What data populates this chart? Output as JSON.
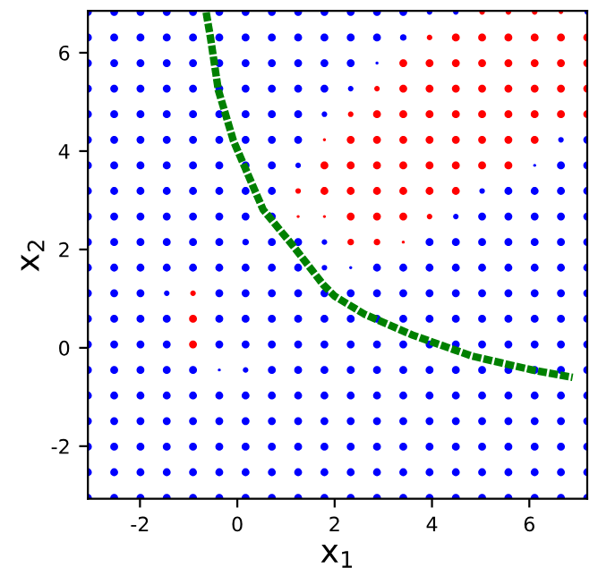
{
  "chart_data": {
    "type": "bubble",
    "xlabel": "x$_{1}$",
    "ylabel": "x$_{2}$",
    "xlim": [
      -3.07,
      7.19
    ],
    "ylim": [
      -3.07,
      6.85
    ],
    "xticks": [
      -2,
      0,
      2,
      4,
      6
    ],
    "yticks": [
      -2,
      0,
      2,
      4,
      6
    ],
    "grid": false,
    "legend": false,
    "series": [
      {
        "color": "#0000ff",
        "marker": "circle",
        "x": [
          -3.07,
          -2.53,
          -1.99,
          -1.45,
          -0.91,
          -0.37,
          0.17,
          0.71,
          1.25,
          1.79,
          2.33,
          2.87,
          3.41,
          3.95,
          4.49,
          7.19,
          -3.07,
          -2.53,
          -1.99,
          -1.45,
          -0.91,
          -0.37,
          0.17,
          0.71,
          1.25,
          1.79,
          2.33,
          2.87,
          3.41,
          -3.07,
          -2.53,
          -1.99,
          -1.45,
          -0.91,
          -0.37,
          0.17,
          0.71,
          1.25,
          1.79,
          2.33,
          2.87,
          -3.07,
          -2.53,
          -1.99,
          -1.45,
          -0.91,
          -0.37,
          0.17,
          0.71,
          1.25,
          1.79,
          2.33,
          -3.07,
          -2.53,
          -1.99,
          -1.45,
          -0.91,
          -0.37,
          0.17,
          0.71,
          1.25,
          1.79,
          -3.07,
          -2.53,
          -1.99,
          -1.45,
          -0.91,
          -0.37,
          0.17,
          0.71,
          1.25,
          6.65,
          7.19,
          -3.07,
          -2.53,
          -1.99,
          -1.45,
          -0.91,
          -0.37,
          0.17,
          0.71,
          1.25,
          6.11,
          6.65,
          7.19,
          -3.07,
          -2.53,
          -1.99,
          -1.45,
          -0.91,
          -0.37,
          0.17,
          0.71,
          5.03,
          5.57,
          6.11,
          6.65,
          7.19,
          -3.07,
          -2.53,
          -1.99,
          -1.45,
          -0.91,
          -0.37,
          0.17,
          0.71,
          4.49,
          5.03,
          5.57,
          6.11,
          6.65,
          7.19,
          -3.07,
          -2.53,
          -1.99,
          -1.45,
          -0.91,
          -0.37,
          0.17,
          0.71,
          1.25,
          1.79,
          3.95,
          4.49,
          5.03,
          5.57,
          6.11,
          6.65,
          7.19,
          -3.07,
          -2.53,
          -1.99,
          -1.45,
          -0.91,
          -0.37,
          0.17,
          0.71,
          1.25,
          1.79,
          2.33,
          2.87,
          3.41,
          3.95,
          4.49,
          5.03,
          5.57,
          6.11,
          6.65,
          7.19,
          -3.07,
          -2.53,
          -1.99,
          -1.45,
          -0.37,
          0.17,
          0.71,
          1.25,
          1.79,
          2.33,
          2.87,
          3.41,
          3.95,
          4.49,
          5.03,
          5.57,
          6.11,
          6.65,
          7.19,
          -3.07,
          -2.53,
          -1.99,
          -1.45,
          -0.37,
          0.17,
          0.71,
          1.25,
          1.79,
          2.33,
          2.87,
          3.41,
          3.95,
          4.49,
          5.03,
          5.57,
          6.11,
          6.65,
          7.19,
          -3.07,
          -2.53,
          -1.99,
          -1.45,
          -0.37,
          0.17,
          0.71,
          1.25,
          1.79,
          2.33,
          2.87,
          3.41,
          3.95,
          4.49,
          5.03,
          5.57,
          6.11,
          6.65,
          7.19,
          -3.07,
          -2.53,
          -1.99,
          -1.45,
          -0.91,
          -0.37,
          0.17,
          0.71,
          1.25,
          1.79,
          2.33,
          2.87,
          3.41,
          3.95,
          4.49,
          5.03,
          5.57,
          6.11,
          6.65,
          7.19,
          -3.07,
          -2.53,
          -1.99,
          -1.45,
          -0.91,
          -0.37,
          0.17,
          0.71,
          1.25,
          1.79,
          2.33,
          2.87,
          3.41,
          3.95,
          4.49,
          5.03,
          5.57,
          6.11,
          6.65,
          7.19,
          -3.07,
          -2.53,
          -1.99,
          -1.45,
          -0.91,
          -0.37,
          0.17,
          0.71,
          1.25,
          1.79,
          2.33,
          2.87,
          3.41,
          3.95,
          4.49,
          5.03,
          5.57,
          6.11,
          6.65,
          7.19,
          -3.07,
          -2.53,
          -1.99,
          -1.45,
          -0.91,
          -0.37,
          0.17,
          0.71,
          1.25,
          1.79,
          2.33,
          2.87,
          3.41,
          3.95,
          4.49,
          5.03,
          5.57,
          6.11,
          6.65,
          7.19,
          -3.07,
          -2.53,
          -1.99,
          -1.45,
          -0.91,
          -0.37,
          0.17,
          0.71,
          1.25,
          1.79,
          2.33,
          2.87,
          3.41,
          3.95,
          4.49,
          5.03,
          5.57,
          6.11,
          6.65,
          7.19,
          -3.07,
          -2.53,
          -1.99,
          -1.45,
          -0.91,
          -0.37,
          0.17,
          0.71,
          1.25,
          1.79,
          2.33,
          2.87,
          3.41,
          3.95,
          4.49,
          5.03,
          5.57,
          6.11,
          6.65,
          7.19
        ],
        "values": [
          6.83,
          6.83,
          6.83,
          6.83,
          6.83,
          6.83,
          6.83,
          6.83,
          6.83,
          6.83,
          6.83,
          6.83,
          6.83,
          6.83,
          6.83,
          6.83,
          6.31,
          6.31,
          6.31,
          6.31,
          6.31,
          6.31,
          6.31,
          6.31,
          6.31,
          6.31,
          6.31,
          6.31,
          6.31,
          5.79,
          5.79,
          5.79,
          5.79,
          5.79,
          5.79,
          5.79,
          5.79,
          5.79,
          5.79,
          5.79,
          5.79,
          5.27,
          5.27,
          5.27,
          5.27,
          5.27,
          5.27,
          5.27,
          5.27,
          5.27,
          5.27,
          5.27,
          4.75,
          4.75,
          4.75,
          4.75,
          4.75,
          4.75,
          4.75,
          4.75,
          4.75,
          4.75,
          4.23,
          4.23,
          4.23,
          4.23,
          4.23,
          4.23,
          4.23,
          4.23,
          4.23,
          4.23,
          4.23,
          3.71,
          3.71,
          3.71,
          3.71,
          3.71,
          3.71,
          3.71,
          3.71,
          3.71,
          3.71,
          3.71,
          3.71,
          3.19,
          3.19,
          3.19,
          3.19,
          3.19,
          3.19,
          3.19,
          3.19,
          3.19,
          3.19,
          3.19,
          3.19,
          3.19,
          2.67,
          2.67,
          2.67,
          2.67,
          2.67,
          2.67,
          2.67,
          2.67,
          2.67,
          2.67,
          2.67,
          2.67,
          2.67,
          2.67,
          2.15,
          2.15,
          2.15,
          2.15,
          2.15,
          2.15,
          2.15,
          2.15,
          2.15,
          2.15,
          2.15,
          2.15,
          2.15,
          2.15,
          2.15,
          2.15,
          2.15,
          1.63,
          1.63,
          1.63,
          1.63,
          1.63,
          1.63,
          1.63,
          1.63,
          1.63,
          1.63,
          1.63,
          1.63,
          1.63,
          1.63,
          1.63,
          1.63,
          1.63,
          1.63,
          1.63,
          1.63,
          1.11,
          1.11,
          1.11,
          1.11,
          1.11,
          1.11,
          1.11,
          1.11,
          1.11,
          1.11,
          1.11,
          1.11,
          1.11,
          1.11,
          1.11,
          1.11,
          1.11,
          1.11,
          1.11,
          0.59,
          0.59,
          0.59,
          0.59,
          0.59,
          0.59,
          0.59,
          0.59,
          0.59,
          0.59,
          0.59,
          0.59,
          0.59,
          0.59,
          0.59,
          0.59,
          0.59,
          0.59,
          0.59,
          0.07,
          0.07,
          0.07,
          0.07,
          0.07,
          0.07,
          0.07,
          0.07,
          0.07,
          0.07,
          0.07,
          0.07,
          0.07,
          0.07,
          0.07,
          0.07,
          0.07,
          0.07,
          0.07,
          -0.45,
          -0.45,
          -0.45,
          -0.45,
          -0.45,
          -0.45,
          -0.45,
          -0.45,
          -0.45,
          -0.45,
          -0.45,
          -0.45,
          -0.45,
          -0.45,
          -0.45,
          -0.45,
          -0.45,
          -0.45,
          -0.45,
          -0.45,
          -0.97,
          -0.97,
          -0.97,
          -0.97,
          -0.97,
          -0.97,
          -0.97,
          -0.97,
          -0.97,
          -0.97,
          -0.97,
          -0.97,
          -0.97,
          -0.97,
          -0.97,
          -0.97,
          -0.97,
          -0.97,
          -0.97,
          -0.97,
          -1.49,
          -1.49,
          -1.49,
          -1.49,
          -1.49,
          -1.49,
          -1.49,
          -1.49,
          -1.49,
          -1.49,
          -1.49,
          -1.49,
          -1.49,
          -1.49,
          -1.49,
          -1.49,
          -1.49,
          -1.49,
          -1.49,
          -1.49,
          -2.01,
          -2.01,
          -2.01,
          -2.01,
          -2.01,
          -2.01,
          -2.01,
          -2.01,
          -2.01,
          -2.01,
          -2.01,
          -2.01,
          -2.01,
          -2.01,
          -2.01,
          -2.01,
          -2.01,
          -2.01,
          -2.01,
          -2.01,
          -2.53,
          -2.53,
          -2.53,
          -2.53,
          -2.53,
          -2.53,
          -2.53,
          -2.53,
          -2.53,
          -2.53,
          -2.53,
          -2.53,
          -2.53,
          -2.53,
          -2.53,
          -2.53,
          -2.53,
          -2.53,
          -2.53,
          -2.53,
          -3.05,
          -3.05,
          -3.05,
          -3.05,
          -3.05,
          -3.05,
          -3.05,
          -3.05,
          -3.05,
          -3.05,
          -3.05,
          -3.05,
          -3.05,
          -3.05,
          -3.05,
          -3.05,
          -3.05,
          -3.05,
          -3.05,
          -3.05
        ],
        "sizes": [
          1,
          1,
          1,
          1,
          1,
          1,
          1,
          1,
          1,
          1,
          1,
          1,
          1,
          0.5,
          0.5,
          0.5,
          1,
          1,
          1,
          1,
          1,
          1,
          1,
          1,
          1,
          1,
          1,
          1,
          0.7,
          1,
          1,
          1,
          1,
          1,
          1,
          1,
          1,
          1,
          1,
          1,
          0.15,
          1,
          1,
          1,
          1,
          1,
          1,
          1,
          1,
          1,
          1,
          0.5,
          1,
          1,
          1,
          1,
          1,
          1,
          1,
          1,
          1,
          0.5,
          1,
          1,
          1,
          1,
          1,
          1,
          1,
          1,
          1,
          0.5,
          1,
          1,
          1,
          1,
          1,
          1,
          1,
          1,
          1,
          0.5,
          0.15,
          1,
          1,
          1,
          1,
          1,
          1,
          1,
          1,
          1,
          1,
          0.5,
          1,
          1,
          1,
          1,
          1,
          1,
          1,
          1,
          1,
          1,
          1,
          1,
          0.5,
          1,
          1,
          1,
          1,
          1,
          1,
          1,
          1,
          1,
          1,
          1,
          0.7,
          1,
          1,
          0.5,
          1,
          1,
          1,
          1,
          1,
          1,
          1,
          1,
          1,
          1,
          1,
          1,
          1,
          1,
          1,
          1,
          0.5,
          0.15,
          1,
          1,
          1,
          1,
          1,
          1,
          1,
          1,
          1,
          1,
          1,
          1,
          0.5,
          1,
          1,
          1,
          1,
          1,
          1,
          1,
          1,
          1,
          1,
          1,
          1,
          1,
          1,
          1,
          1,
          1,
          1,
          1,
          1,
          1,
          1,
          1,
          1,
          1,
          1,
          1,
          1,
          1,
          1,
          1,
          1,
          1,
          1,
          1,
          1,
          1,
          1,
          1,
          1,
          1,
          1,
          1,
          1,
          1,
          1,
          1,
          1,
          1,
          1,
          1,
          1,
          1,
          1,
          1,
          1,
          1,
          1,
          0.15,
          0.5,
          1,
          1,
          1,
          1,
          1,
          1,
          1,
          1,
          1,
          1,
          1,
          1,
          1,
          1,
          1,
          1,
          1,
          1,
          1,
          1,
          1,
          1,
          1,
          1,
          1,
          1,
          1,
          1,
          1,
          1,
          1,
          1,
          1,
          1,
          1,
          1,
          1,
          1,
          1,
          1,
          1,
          1,
          1,
          1,
          1,
          1,
          1,
          1,
          1,
          1,
          1,
          1,
          1,
          1,
          1,
          1,
          1,
          1,
          1,
          1,
          1,
          1,
          1,
          1,
          1,
          1,
          1,
          1,
          1,
          1,
          1,
          1,
          1,
          1,
          1,
          1,
          1,
          1,
          1,
          1,
          1,
          1,
          1,
          1,
          1,
          1,
          1,
          1,
          1,
          1,
          1,
          1,
          1,
          1,
          1,
          1,
          1,
          1,
          1,
          1,
          1,
          1,
          1,
          1,
          1,
          1,
          1,
          1,
          1,
          1,
          1,
          1,
          1
        ]
      },
      {
        "color": "#ff0000",
        "marker": "circle",
        "x": [
          5.03,
          5.57,
          6.11,
          6.65,
          3.95,
          4.49,
          5.03,
          5.57,
          6.11,
          6.65,
          7.19,
          3.41,
          3.95,
          4.49,
          5.03,
          5.57,
          6.11,
          6.65,
          7.19,
          2.87,
          3.41,
          3.95,
          4.49,
          5.03,
          5.57,
          6.11,
          6.65,
          7.19,
          2.33,
          2.87,
          3.41,
          3.95,
          4.49,
          5.03,
          5.57,
          6.11,
          6.65,
          7.19,
          1.79,
          2.33,
          2.87,
          3.41,
          3.95,
          4.49,
          5.03,
          5.57,
          6.11,
          1.79,
          2.33,
          2.87,
          3.41,
          3.95,
          4.49,
          5.03,
          5.57,
          1.25,
          1.79,
          2.33,
          2.87,
          3.41,
          3.95,
          4.49,
          1.25,
          1.79,
          2.33,
          2.87,
          3.41,
          3.95,
          2.33,
          2.87,
          3.41,
          -0.91,
          -0.91,
          -0.91
        ],
        "values": [
          6.83,
          6.83,
          6.83,
          6.83,
          6.31,
          6.31,
          6.31,
          6.31,
          6.31,
          6.31,
          6.31,
          5.79,
          5.79,
          5.79,
          5.79,
          5.79,
          5.79,
          5.79,
          5.79,
          5.27,
          5.27,
          5.27,
          5.27,
          5.27,
          5.27,
          5.27,
          5.27,
          5.27,
          4.75,
          4.75,
          4.75,
          4.75,
          4.75,
          4.75,
          4.75,
          4.75,
          4.75,
          4.75,
          4.23,
          4.23,
          4.23,
          4.23,
          4.23,
          4.23,
          4.23,
          4.23,
          4.23,
          3.71,
          3.71,
          3.71,
          3.71,
          3.71,
          3.71,
          3.71,
          3.71,
          3.19,
          3.19,
          3.19,
          3.19,
          3.19,
          3.19,
          3.19,
          2.67,
          2.67,
          2.67,
          2.67,
          2.67,
          2.67,
          2.15,
          2.15,
          2.15,
          1.11,
          0.59,
          0.07
        ],
        "sizes": [
          0.5,
          0.5,
          0.5,
          0.3,
          0.5,
          1,
          1,
          1,
          1,
          1,
          1,
          1,
          1,
          1,
          1,
          1,
          1,
          1,
          1,
          0.5,
          1,
          1,
          1,
          1,
          1,
          1,
          1,
          1,
          0.5,
          1,
          1,
          1,
          1,
          1,
          1,
          1,
          1,
          1,
          0.15,
          1,
          1,
          1,
          1,
          1,
          1,
          1,
          1,
          1,
          1,
          1,
          1,
          1,
          1,
          1,
          1,
          0.5,
          1,
          1,
          1,
          1,
          1,
          1,
          0.15,
          0.15,
          1,
          1,
          1,
          0.5,
          0.7,
          0.7,
          0.15,
          0.5,
          1,
          1
        ]
      },
      {
        "type": "line",
        "color": "#008000",
        "line_style": "dashed",
        "marker": "none",
        "x": [
          -0.64,
          -0.55,
          -0.39,
          -0.08,
          0.16,
          0.53,
          1.14,
          1.76,
          2.0,
          2.62,
          3.6,
          4.83,
          6.06,
          6.89
        ],
        "values": [
          6.82,
          6.3,
          5.24,
          4.21,
          3.66,
          2.81,
          2.08,
          1.29,
          1.05,
          0.68,
          0.26,
          -0.17,
          -0.45,
          -0.6
        ]
      }
    ]
  }
}
